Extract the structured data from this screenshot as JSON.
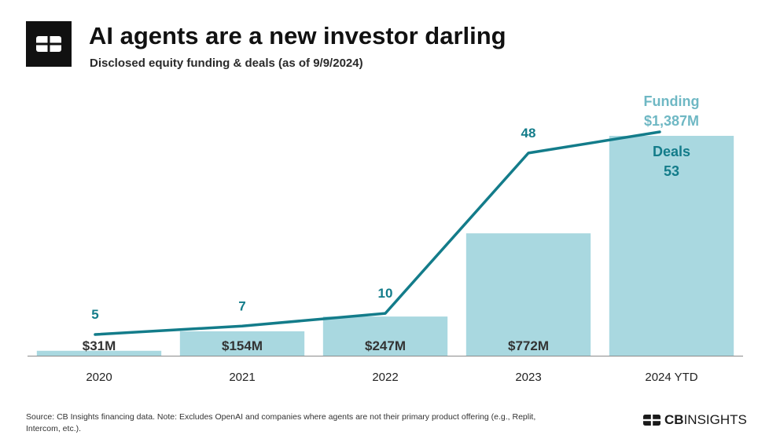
{
  "header": {
    "title": "AI agents are a new investor darling",
    "subtitle": "Disclosed equity funding & deals (as of 9/9/2024)"
  },
  "legend": {
    "funding_label": "Funding",
    "funding_value": "$1,387M",
    "deals_label": "Deals",
    "deals_value": "53"
  },
  "chart_data": {
    "type": "bar",
    "categories": [
      "2020",
      "2021",
      "2022",
      "2023",
      "2024 YTD"
    ],
    "series": [
      {
        "name": "Funding",
        "type": "bar",
        "unit": "$M",
        "values": [
          31,
          154,
          247,
          772,
          1387
        ],
        "labels": [
          "$31M",
          "$154M",
          "$247M",
          "$772M",
          "$1,387M"
        ]
      },
      {
        "name": "Deals",
        "type": "line",
        "values": [
          5,
          7,
          10,
          48,
          53
        ],
        "labels": [
          "5",
          "7",
          "10",
          "48",
          "53"
        ]
      }
    ],
    "colors": {
      "bar": "#a9d8e0",
      "line": "#137c8a",
      "bar_label_top": "#6fb8c4"
    }
  },
  "footer": {
    "source": "Source: CB Insights financing data. Note: Excludes OpenAI and companies where agents are not their primary product offering (e.g., Replit, Intercom, etc.).",
    "brand_bold": "CB",
    "brand_rest": "INSIGHTS"
  }
}
